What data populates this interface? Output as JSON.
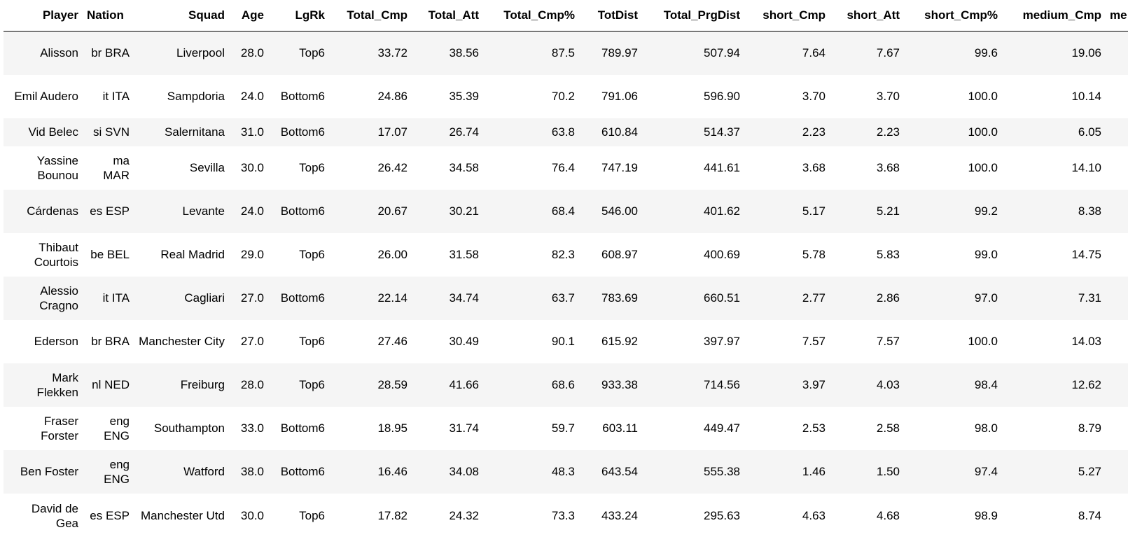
{
  "table": {
    "columns": [
      "Player",
      "Nation",
      "Squad",
      "Age",
      "LgRk",
      "Total_Cmp",
      "Total_Att",
      "Total_Cmp%",
      "TotDist",
      "Total_PrgDist",
      "short_Cmp",
      "short_Att",
      "short_Cmp%",
      "medium_Cmp",
      "me"
    ],
    "rows": [
      {
        "player": "Alisson",
        "nation": "br BRA",
        "squad": "Liverpool",
        "age": "28.0",
        "lgrk": "Top6",
        "total_cmp": "33.72",
        "total_att": "38.56",
        "total_cmp_pct": "87.5",
        "totdist": "789.97",
        "total_prgdist": "507.94",
        "short_cmp": "7.64",
        "short_att": "7.67",
        "short_cmp_pct": "99.6",
        "medium_cmp": "19.06"
      },
      {
        "player": "Emil Audero",
        "nation": "it ITA",
        "squad": "Sampdoria",
        "age": "24.0",
        "lgrk": "Bottom6",
        "total_cmp": "24.86",
        "total_att": "35.39",
        "total_cmp_pct": "70.2",
        "totdist": "791.06",
        "total_prgdist": "596.90",
        "short_cmp": "3.70",
        "short_att": "3.70",
        "short_cmp_pct": "100.0",
        "medium_cmp": "10.14"
      },
      {
        "player": "Vid Belec",
        "nation": "si SVN",
        "squad": "Salernitana",
        "age": "31.0",
        "lgrk": "Bottom6",
        "total_cmp": "17.07",
        "total_att": "26.74",
        "total_cmp_pct": "63.8",
        "totdist": "610.84",
        "total_prgdist": "514.37",
        "short_cmp": "2.23",
        "short_att": "2.23",
        "short_cmp_pct": "100.0",
        "medium_cmp": "6.05"
      },
      {
        "player": "Yassine Bounou",
        "nation": "ma MAR",
        "squad": "Sevilla",
        "age": "30.0",
        "lgrk": "Top6",
        "total_cmp": "26.42",
        "total_att": "34.58",
        "total_cmp_pct": "76.4",
        "totdist": "747.19",
        "total_prgdist": "441.61",
        "short_cmp": "3.68",
        "short_att": "3.68",
        "short_cmp_pct": "100.0",
        "medium_cmp": "14.10"
      },
      {
        "player": "Cárdenas",
        "nation": "es ESP",
        "squad": "Levante",
        "age": "24.0",
        "lgrk": "Bottom6",
        "total_cmp": "20.67",
        "total_att": "30.21",
        "total_cmp_pct": "68.4",
        "totdist": "546.00",
        "total_prgdist": "401.62",
        "short_cmp": "5.17",
        "short_att": "5.21",
        "short_cmp_pct": "99.2",
        "medium_cmp": "8.38"
      },
      {
        "player": "Thibaut Courtois",
        "nation": "be BEL",
        "squad": "Real Madrid",
        "age": "29.0",
        "lgrk": "Top6",
        "total_cmp": "26.00",
        "total_att": "31.58",
        "total_cmp_pct": "82.3",
        "totdist": "608.97",
        "total_prgdist": "400.69",
        "short_cmp": "5.78",
        "short_att": "5.83",
        "short_cmp_pct": "99.0",
        "medium_cmp": "14.75"
      },
      {
        "player": "Alessio Cragno",
        "nation": "it ITA",
        "squad": "Cagliari",
        "age": "27.0",
        "lgrk": "Bottom6",
        "total_cmp": "22.14",
        "total_att": "34.74",
        "total_cmp_pct": "63.7",
        "totdist": "783.69",
        "total_prgdist": "660.51",
        "short_cmp": "2.77",
        "short_att": "2.86",
        "short_cmp_pct": "97.0",
        "medium_cmp": "7.31"
      },
      {
        "player": "Ederson",
        "nation": "br BRA",
        "squad": "Manchester City",
        "age": "27.0",
        "lgrk": "Top6",
        "total_cmp": "27.46",
        "total_att": "30.49",
        "total_cmp_pct": "90.1",
        "totdist": "615.92",
        "total_prgdist": "397.97",
        "short_cmp": "7.57",
        "short_att": "7.57",
        "short_cmp_pct": "100.0",
        "medium_cmp": "14.03"
      },
      {
        "player": "Mark Flekken",
        "nation": "nl NED",
        "squad": "Freiburg",
        "age": "28.0",
        "lgrk": "Top6",
        "total_cmp": "28.59",
        "total_att": "41.66",
        "total_cmp_pct": "68.6",
        "totdist": "933.38",
        "total_prgdist": "714.56",
        "short_cmp": "3.97",
        "short_att": "4.03",
        "short_cmp_pct": "98.4",
        "medium_cmp": "12.62"
      },
      {
        "player": "Fraser Forster",
        "nation": "eng ENG",
        "squad": "Southampton",
        "age": "33.0",
        "lgrk": "Bottom6",
        "total_cmp": "18.95",
        "total_att": "31.74",
        "total_cmp_pct": "59.7",
        "totdist": "603.11",
        "total_prgdist": "449.47",
        "short_cmp": "2.53",
        "short_att": "2.58",
        "short_cmp_pct": "98.0",
        "medium_cmp": "8.79"
      },
      {
        "player": "Ben Foster",
        "nation": "eng ENG",
        "squad": "Watford",
        "age": "38.0",
        "lgrk": "Bottom6",
        "total_cmp": "16.46",
        "total_att": "34.08",
        "total_cmp_pct": "48.3",
        "totdist": "643.54",
        "total_prgdist": "555.38",
        "short_cmp": "1.46",
        "short_att": "1.50",
        "short_cmp_pct": "97.4",
        "medium_cmp": "5.27"
      },
      {
        "player": "David de Gea",
        "nation": "es ESP",
        "squad": "Manchester Utd",
        "age": "30.0",
        "lgrk": "Top6",
        "total_cmp": "17.82",
        "total_att": "24.32",
        "total_cmp_pct": "73.3",
        "totdist": "433.24",
        "total_prgdist": "295.63",
        "short_cmp": "4.63",
        "short_att": "4.68",
        "short_cmp_pct": "98.9",
        "medium_cmp": "8.74"
      }
    ]
  }
}
